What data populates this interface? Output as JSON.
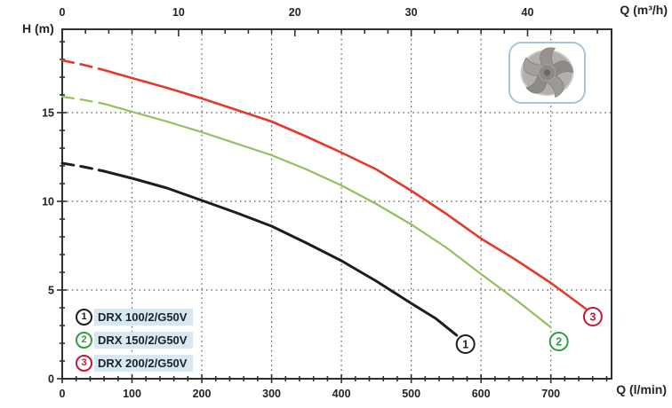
{
  "chart_data": {
    "type": "line",
    "xlabel_top": "Q (m³/h)",
    "xlabel_bottom": "Q (l/min)",
    "ylabel": "H (m)",
    "x_bottom": {
      "unit": "l/min",
      "min": 0,
      "max": 787,
      "major_ticks": [
        0,
        100,
        200,
        300,
        400,
        500,
        600,
        700
      ],
      "minor_step": 20
    },
    "x_top": {
      "unit": "m³/h",
      "min": 0,
      "max": 47.2,
      "major_ticks": [
        0,
        10,
        20,
        30,
        40
      ],
      "minor_step": 2,
      "lmin_per_unit": 16.6667
    },
    "y": {
      "unit": "m",
      "min": 0,
      "max": 19.7,
      "major_ticks": [
        0,
        5,
        10,
        15
      ],
      "minor_step": 1
    },
    "grid": {
      "style": "dotted",
      "vertical_lmin_step": 100,
      "horizontal_lines": [
        5,
        10,
        15
      ]
    },
    "legend_position": "bottom-left",
    "series": [
      {
        "id": "1",
        "name": "DRX 100/2/G50V",
        "color": "#1d1d1d",
        "badge_color": "#1d1d1d",
        "width": 3,
        "dash_until": 60,
        "marker_offset": [
          10,
          10
        ],
        "points": [
          [
            0,
            12.15
          ],
          [
            30,
            11.95
          ],
          [
            60,
            11.7
          ],
          [
            100,
            11.3
          ],
          [
            150,
            10.75
          ],
          [
            200,
            10.05
          ],
          [
            250,
            9.35
          ],
          [
            300,
            8.6
          ],
          [
            350,
            7.65
          ],
          [
            400,
            6.65
          ],
          [
            450,
            5.5
          ],
          [
            500,
            4.25
          ],
          [
            535,
            3.4
          ],
          [
            565,
            2.45
          ]
        ]
      },
      {
        "id": "2",
        "name": "DRX 150/2/G50V",
        "color": "#93c05f",
        "badge_color": "#2f9e41",
        "width": 2.2,
        "dash_until": 60,
        "marker_offset": [
          9,
          16
        ],
        "points": [
          [
            0,
            15.9
          ],
          [
            30,
            15.72
          ],
          [
            60,
            15.5
          ],
          [
            100,
            15.05
          ],
          [
            150,
            14.5
          ],
          [
            200,
            13.9
          ],
          [
            250,
            13.25
          ],
          [
            300,
            12.6
          ],
          [
            350,
            11.8
          ],
          [
            400,
            10.9
          ],
          [
            450,
            9.85
          ],
          [
            500,
            8.7
          ],
          [
            550,
            7.4
          ],
          [
            600,
            5.9
          ],
          [
            650,
            4.45
          ],
          [
            700,
            2.9
          ]
        ]
      },
      {
        "id": "3",
        "name": "DRX 200/2/G50V",
        "color": "#e23a2d",
        "badge_color": "#c41735",
        "width": 2.6,
        "dash_until": 60,
        "marker_offset": [
          8,
          9
        ],
        "points": [
          [
            0,
            17.95
          ],
          [
            30,
            17.7
          ],
          [
            60,
            17.4
          ],
          [
            100,
            16.95
          ],
          [
            150,
            16.4
          ],
          [
            200,
            15.8
          ],
          [
            250,
            15.15
          ],
          [
            300,
            14.5
          ],
          [
            350,
            13.65
          ],
          [
            400,
            12.75
          ],
          [
            450,
            11.8
          ],
          [
            500,
            10.6
          ],
          [
            550,
            9.3
          ],
          [
            600,
            7.9
          ],
          [
            650,
            6.7
          ],
          [
            700,
            5.4
          ],
          [
            750,
            3.95
          ]
        ]
      }
    ]
  },
  "colors": {
    "axis": "#2f2f2f",
    "grid_dots": "#5f5f5f",
    "tick_label": "#222222",
    "legend_bg": "#d9e7f0",
    "legend_text": "#16232e",
    "impeller_border": "#a9c6d6"
  }
}
